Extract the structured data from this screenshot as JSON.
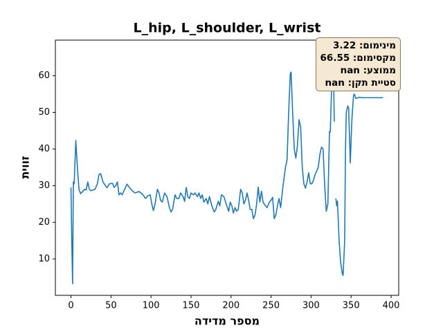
{
  "chart_data": {
    "type": "line",
    "title": "L_hip, L_shoulder, L_wrist",
    "x_label": "מספר מדידה",
    "y_label": "זווית",
    "annotations": [
      "מינימום: 3.22",
      "מקסימום: 66.55",
      "ממוצע: nan",
      "סטיית תקן: nan"
    ],
    "color": "#1f77b4",
    "x": [
      0,
      1,
      2,
      3,
      4,
      6,
      8,
      10,
      12,
      15,
      17,
      19,
      21,
      23,
      25,
      30,
      33,
      35,
      37,
      40,
      43,
      45,
      48,
      52,
      54,
      56,
      58,
      60,
      62,
      64,
      66,
      70,
      73,
      76,
      80,
      85,
      90,
      93,
      96,
      99,
      101,
      103,
      105,
      108,
      110,
      112,
      114,
      117,
      120,
      123,
      125,
      127,
      130,
      132,
      135,
      137,
      140,
      142,
      144,
      146,
      148,
      150,
      153,
      155,
      158,
      160,
      162,
      164,
      166,
      169,
      171,
      173,
      176,
      179,
      181,
      184,
      186,
      188,
      191,
      194,
      197,
      199,
      201,
      203,
      205,
      207,
      209,
      212,
      214,
      216,
      218,
      220,
      222,
      224,
      226,
      228,
      230,
      232,
      234,
      236,
      238,
      240,
      243,
      245,
      248,
      250,
      252,
      254,
      256,
      258,
      260,
      262,
      265,
      268,
      270,
      272,
      274,
      275,
      277,
      279,
      281,
      283,
      285,
      287,
      289,
      291,
      293,
      295,
      297,
      299,
      301,
      303,
      305,
      307,
      309,
      311,
      313,
      315,
      317,
      319,
      321,
      323,
      324,
      325,
      327,
      328,
      329,
      330,
      331,
      332,
      333,
      335,
      337,
      339,
      340,
      342,
      343,
      344,
      346,
      347,
      349,
      351,
      353,
      354,
      356,
      360,
      365,
      390
    ],
    "y": [
      29.5,
      15,
      3.22,
      31,
      30.5,
      42.3,
      35,
      29,
      27.8,
      28.5,
      29,
      28.8,
      31,
      29,
      28.6,
      29,
      30.5,
      33,
      33.3,
      31,
      30,
      29.4,
      30.5,
      30.6,
      29.5,
      30,
      31,
      27.5,
      28,
      27.5,
      28.5,
      30.4,
      29.5,
      28.7,
      28,
      28.4,
      27.5,
      26.5,
      27.2,
      27.5,
      25,
      23.2,
      25,
      29,
      28,
      26,
      25.5,
      28,
      27,
      24,
      22.8,
      23.5,
      27.5,
      26.5,
      26.5,
      28,
      27,
      25.7,
      29.5,
      27,
      26.5,
      28,
      27.5,
      28,
      27,
      28,
      26.5,
      27.5,
      25.5,
      26.5,
      25,
      27,
      24.5,
      22.8,
      23.5,
      25.7,
      24.5,
      27.5,
      27,
      25,
      23,
      25.5,
      24.5,
      22.5,
      24,
      23,
      23.5,
      29,
      28,
      25,
      26,
      28,
      26,
      23.5,
      23.5,
      21,
      22,
      25,
      29.6,
      25.5,
      28.5,
      25.5,
      24.5,
      24,
      25.5,
      26,
      26.8,
      21,
      22,
      24.5,
      26.5,
      24,
      30,
      35,
      37,
      50,
      60.5,
      61,
      50,
      40,
      37.5,
      41,
      48,
      46,
      35,
      30.5,
      29.3,
      31,
      33.5,
      30.5,
      30.5,
      31.5,
      33,
      34,
      35,
      38.5,
      40.5,
      40,
      30,
      23,
      25,
      44.7,
      44.6,
      52,
      66.55,
      62,
      47.5,
      null,
      26.5,
      24.5,
      25.8,
      15,
      9,
      6,
      5.5,
      15,
      40,
      50,
      51.8,
      51,
      36.2,
      48,
      54.5,
      55,
      53.8,
      54.1,
      54,
      54
    ],
    "xlim": [
      -19.5,
      409.5
    ],
    "ylim": [
      0.05,
      69.72
    ],
    "xticks": [
      0,
      50,
      100,
      150,
      200,
      250,
      300,
      350,
      400
    ],
    "yticks": [
      10,
      20,
      30,
      40,
      50,
      60
    ]
  }
}
